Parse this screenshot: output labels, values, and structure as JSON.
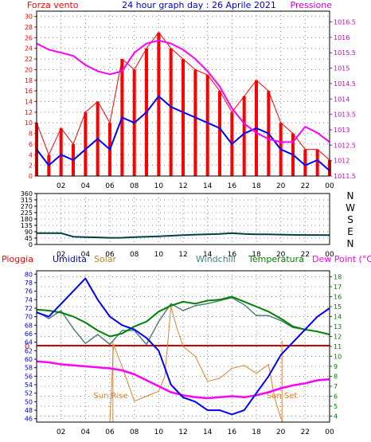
{
  "chart_data": [
    {
      "type": "line",
      "title": "24 hour graph day : 26 Aprile 2021",
      "x_ticks": [
        "02",
        "04",
        "06",
        "08",
        "10",
        "12",
        "14",
        "16",
        "18",
        "20",
        "22",
        "00"
      ],
      "left_axis": {
        "label": "Forza vento",
        "ticks": [
          0,
          2,
          4,
          6,
          8,
          10,
          12,
          14,
          16,
          18,
          20,
          22,
          24,
          26,
          28,
          30
        ],
        "range": [
          0,
          31
        ]
      },
      "right_axis": {
        "label": "Pressione",
        "ticks": [
          "1011.5",
          "1012",
          "1012.5",
          "1013",
          "1013.5",
          "1014",
          "1014.5",
          "1015",
          "1015.5",
          "1016",
          "1016.5"
        ],
        "range": [
          1011.5,
          1016.85
        ]
      },
      "series": [
        {
          "id": "gust",
          "color": "#ff0000",
          "axis": "left",
          "x": [
            0,
            1,
            2,
            3,
            4,
            5,
            6,
            7,
            8,
            9,
            10,
            11,
            12,
            13,
            14,
            15,
            16,
            17,
            18,
            19,
            20,
            21,
            22,
            23,
            24
          ],
          "y": [
            10,
            4,
            9,
            6,
            12,
            14,
            10,
            22,
            20,
            24,
            27,
            24,
            22,
            20,
            19,
            16,
            12,
            15,
            18,
            16,
            10,
            8,
            5,
            5,
            3
          ]
        },
        {
          "id": "wind",
          "color": "#0000ff",
          "axis": "left",
          "x": [
            0,
            1,
            2,
            3,
            4,
            5,
            6,
            7,
            8,
            9,
            10,
            11,
            12,
            13,
            14,
            15,
            16,
            17,
            18,
            19,
            20,
            21,
            22,
            23,
            24
          ],
          "y": [
            5,
            2,
            4,
            3,
            5,
            7,
            5,
            11,
            10,
            12,
            15,
            13,
            12,
            11,
            10,
            9,
            6,
            8,
            9,
            8,
            5,
            4,
            2,
            3,
            1
          ]
        },
        {
          "id": "pressure",
          "color": "#ff00ff",
          "axis": "right",
          "x": [
            0,
            1,
            2,
            3,
            4,
            5,
            6,
            7,
            8,
            9,
            10,
            11,
            12,
            13,
            14,
            15,
            16,
            17,
            18,
            19,
            20,
            21,
            22,
            23,
            24
          ],
          "y": [
            1015.8,
            1015.6,
            1015.5,
            1015.4,
            1015.1,
            1014.9,
            1014.8,
            1014.9,
            1015.5,
            1015.8,
            1015.9,
            1015.8,
            1015.6,
            1015.3,
            1014.9,
            1014.4,
            1013.7,
            1013.2,
            1012.9,
            1012.7,
            1012.6,
            1012.6,
            1013.1,
            1012.9,
            1012.6
          ]
        }
      ]
    },
    {
      "type": "line",
      "left_axis": {
        "ticks": [
          0,
          45,
          90,
          135,
          180,
          225,
          270,
          315,
          360
        ],
        "range": [
          0,
          360
        ]
      },
      "right_labels": [
        "N",
        "W",
        "S",
        "E",
        "N"
      ],
      "series": [
        {
          "id": "wind_direction",
          "color": "#004040",
          "x": [
            0,
            1,
            2,
            3,
            4,
            5,
            6,
            7,
            8,
            9,
            10,
            11,
            12,
            13,
            14,
            15,
            16,
            17,
            18,
            19,
            20,
            21,
            22,
            23,
            24
          ],
          "y": [
            80,
            80,
            80,
            55,
            52,
            50,
            47,
            48,
            52,
            55,
            58,
            62,
            66,
            70,
            72,
            75,
            80,
            74,
            72,
            72,
            70,
            68,
            67,
            67,
            66
          ]
        }
      ]
    },
    {
      "type": "line",
      "header_labels": [
        {
          "text": "Pioggia",
          "color": "#ff0000"
        },
        {
          "text": "Umidita",
          "color": "#0000cc"
        },
        {
          "text": "Solar",
          "color": "#c08020"
        },
        {
          "text": "Windchill",
          "color": "#408080"
        },
        {
          "text": "Temperatura",
          "color": "#008000"
        },
        {
          "text": "Dew Point (°C)",
          "color": "#ff00ff"
        }
      ],
      "left_axis": {
        "ticks": [
          46,
          48,
          50,
          52,
          54,
          56,
          58,
          60,
          62,
          64,
          66,
          68,
          70,
          72,
          74,
          76,
          78,
          80
        ],
        "range": [
          45.2,
          80.8
        ]
      },
      "right_axis": {
        "ticks": [
          4,
          5,
          6,
          7,
          8,
          9,
          10,
          11,
          12,
          13,
          14,
          15,
          16,
          17,
          18
        ],
        "range": [
          3.4,
          18.6
        ]
      },
      "rain_axis_label": "0",
      "annotations": [
        {
          "text": "Sun Rise",
          "x": 6.25
        },
        {
          "text": "Sun Set",
          "x": 20.1
        }
      ],
      "series": [
        {
          "id": "humidity",
          "color": "#0000ff",
          "axis": "left",
          "x": [
            0,
            1,
            2,
            3,
            4,
            5,
            6,
            7,
            8,
            9,
            10,
            11,
            12,
            13,
            14,
            15,
            16,
            17,
            18,
            19,
            20,
            21,
            22,
            23,
            24
          ],
          "y": [
            71,
            70,
            73,
            76,
            79,
            74,
            70,
            68,
            67,
            65,
            62,
            54,
            51,
            50,
            48,
            48,
            47,
            48,
            52,
            56,
            61,
            64,
            67,
            70,
            72
          ]
        },
        {
          "id": "temperature",
          "color": "#008000",
          "axis": "right",
          "x": [
            0,
            1,
            2,
            3,
            4,
            5,
            6,
            7,
            8,
            9,
            10,
            11,
            12,
            13,
            14,
            15,
            16,
            17,
            18,
            19,
            20,
            21,
            22,
            23,
            24
          ],
          "y": [
            14.7,
            14.6,
            14.4,
            14.0,
            13.4,
            12.6,
            12.0,
            12.3,
            13.0,
            13.5,
            14.5,
            15.1,
            15.5,
            15.3,
            15.6,
            15.7,
            16.0,
            15.5,
            15.0,
            14.5,
            13.8,
            13.0,
            12.7,
            12.5,
            12.2
          ]
        },
        {
          "id": "windchill",
          "color": "#508080",
          "axis": "right",
          "x": [
            0,
            1,
            2,
            3,
            4,
            5,
            6,
            7,
            8,
            9,
            10,
            11,
            12,
            13,
            14,
            15,
            16,
            17,
            18,
            19,
            20,
            21,
            22,
            23,
            24
          ],
          "y": [
            14.5,
            13.8,
            14.6,
            12.8,
            11.3,
            12.2,
            11.2,
            12.6,
            12.6,
            11.2,
            13.5,
            15.3,
            14.6,
            15.1,
            15.3,
            15.6,
            15.9,
            15.2,
            14.1,
            14.1,
            13.6,
            12.9,
            12.7,
            12.5,
            12.2
          ]
        },
        {
          "id": "dew_point",
          "color": "#ff00ff",
          "axis": "right",
          "x": [
            0,
            1,
            2,
            3,
            4,
            5,
            6,
            7,
            8,
            9,
            10,
            11,
            12,
            13,
            14,
            15,
            16,
            17,
            18,
            19,
            20,
            21,
            22,
            23,
            24
          ],
          "y": [
            9.5,
            9.4,
            9.2,
            9.1,
            9.0,
            8.9,
            8.8,
            8.6,
            8.2,
            7.6,
            7.0,
            6.4,
            6.1,
            5.9,
            5.8,
            5.9,
            6.0,
            5.9,
            6.1,
            6.4,
            6.8,
            7.1,
            7.3,
            7.6,
            7.7
          ]
        },
        {
          "id": "solar",
          "color": "#e08030",
          "axis": "right",
          "x": [
            0,
            1,
            2,
            3,
            4,
            5,
            6,
            6.3,
            7,
            8,
            9,
            10,
            10.5,
            11,
            11.5,
            12,
            13,
            14,
            15,
            16,
            17,
            18,
            19,
            19.5,
            20,
            20.2,
            21,
            22,
            23,
            24
          ],
          "y": [
            3.4,
            3.4,
            3.4,
            3.4,
            3.4,
            3.4,
            3.4,
            11.2,
            9.0,
            5.5,
            6.0,
            6.5,
            8.0,
            15.0,
            12.8,
            11.0,
            10.0,
            7.5,
            7.8,
            8.8,
            9.1,
            8.3,
            9.2,
            5.8,
            3.8,
            3.4,
            3.4,
            3.4,
            3.4,
            3.4
          ]
        },
        {
          "id": "rain",
          "color": "#ff0000",
          "axis": "rain",
          "x": [
            0,
            24
          ],
          "y": [
            0,
            0
          ]
        }
      ]
    }
  ]
}
